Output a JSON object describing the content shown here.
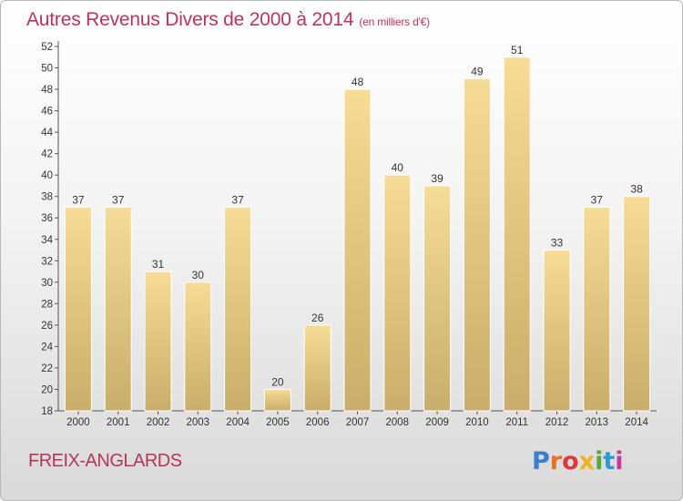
{
  "title": "Autres Revenus Divers de 2000 à 2014",
  "unit_note": "(en milliers d'€)",
  "place_name": "FREIX-ANGLARDS",
  "logo": {
    "text": "Proxiti",
    "colors": [
      "#3b7ed1",
      "#e6731f",
      "#d93b3b",
      "#f0b323",
      "#56a83a",
      "#2a9ad6",
      "#c23d97"
    ]
  },
  "chart_data": {
    "type": "bar",
    "categories": [
      "2000",
      "2001",
      "2002",
      "2003",
      "2004",
      "2005",
      "2006",
      "2007",
      "2008",
      "2009",
      "2010",
      "2011",
      "2012",
      "2013",
      "2014"
    ],
    "values": [
      37,
      37,
      31,
      30,
      37,
      20,
      26,
      48,
      40,
      39,
      49,
      51,
      33,
      37,
      38
    ],
    "ylim": [
      18,
      52
    ],
    "yticks": [
      18,
      20,
      22,
      24,
      26,
      28,
      30,
      32,
      34,
      36,
      38,
      40,
      42,
      44,
      46,
      48,
      50,
      52
    ],
    "grid": false,
    "bar_color": "#e8c878"
  }
}
